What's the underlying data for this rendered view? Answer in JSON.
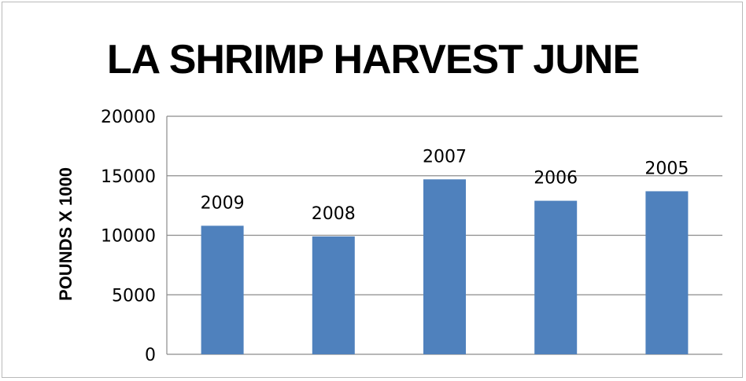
{
  "chart_data": {
    "type": "bar",
    "title": "LA SHRIMP HARVEST JUNE",
    "xlabel": "",
    "ylabel": "POUNDS X  1000",
    "categories": [
      "2009",
      "2008",
      "2007",
      "2006",
      "2005"
    ],
    "values": [
      10800,
      9900,
      14700,
      12900,
      13700
    ],
    "data_labels": [
      "2009",
      "2008",
      "2007",
      "2006",
      "2005"
    ],
    "ylim": [
      0,
      20000
    ],
    "yticks": [
      "0",
      "5000",
      "10000",
      "15000",
      "20000"
    ],
    "grid": true,
    "legend": "none",
    "bar_color": "#4f81bd",
    "grid_color": "#8c8c8c"
  }
}
